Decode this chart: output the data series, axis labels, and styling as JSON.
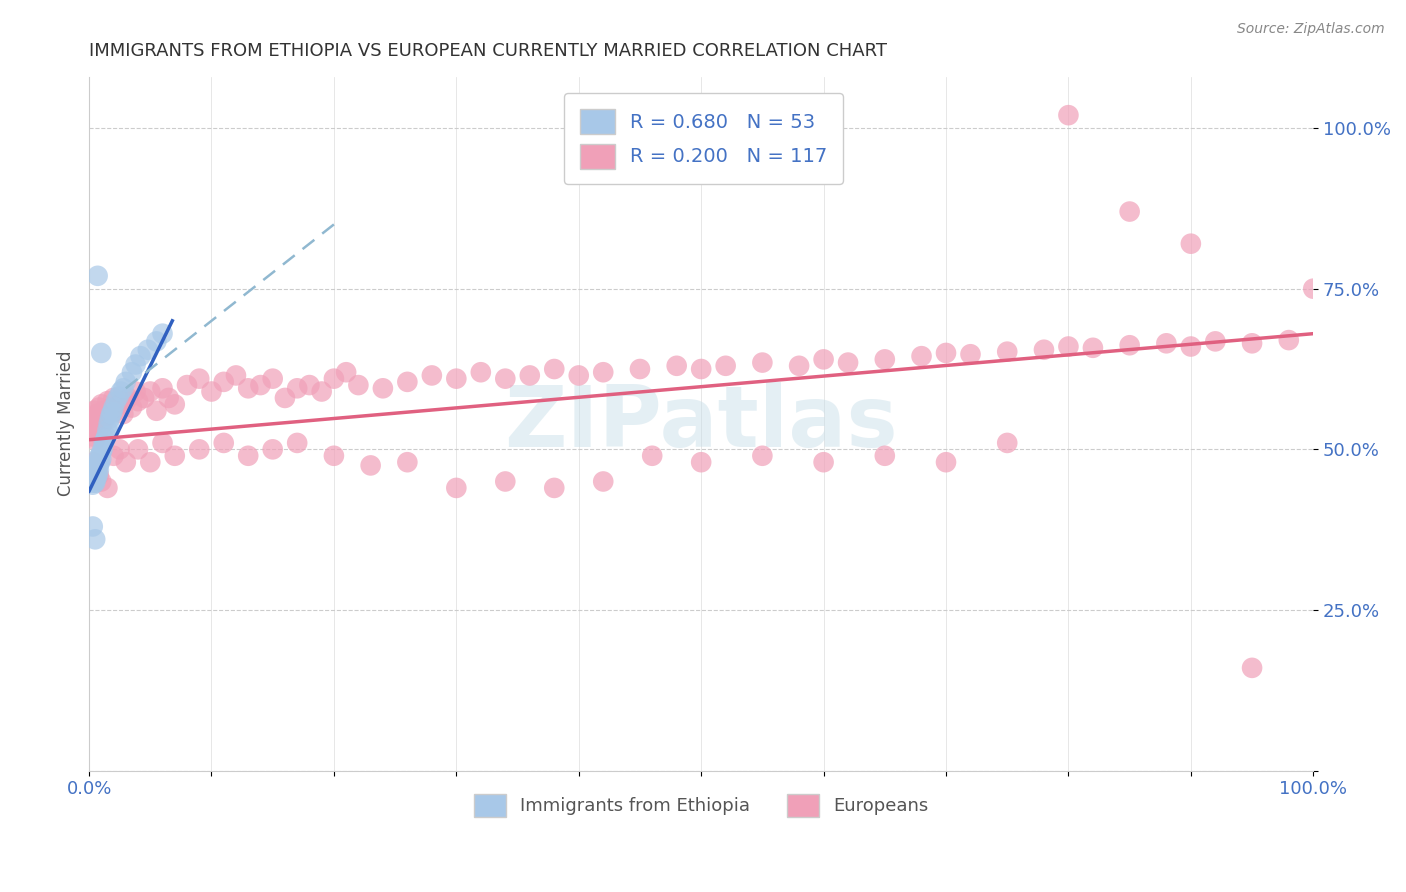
{
  "title": "IMMIGRANTS FROM ETHIOPIA VS EUROPEAN CURRENTLY MARRIED CORRELATION CHART",
  "source": "Source: ZipAtlas.com",
  "ylabel": "Currently Married",
  "legend_r1": "R = 0.680",
  "legend_n1": "N = 53",
  "legend_r2": "R = 0.200",
  "legend_n2": "N = 117",
  "legend_label1": "Immigrants from Ethiopia",
  "legend_label2": "Europeans",
  "watermark": "ZIPatlas",
  "blue_color": "#a8c8e8",
  "pink_color": "#f0a0b8",
  "blue_line_color": "#3060c0",
  "pink_line_color": "#e06080",
  "dashed_line_color": "#90b8d0",
  "axis_label_color": "#4472c4",
  "legend_r_color": "#4472c4",
  "blue_scatter_x": [
    0.001,
    0.002,
    0.002,
    0.003,
    0.003,
    0.003,
    0.004,
    0.004,
    0.004,
    0.004,
    0.005,
    0.005,
    0.005,
    0.005,
    0.005,
    0.006,
    0.006,
    0.006,
    0.007,
    0.007,
    0.007,
    0.008,
    0.008,
    0.008,
    0.009,
    0.009,
    0.01,
    0.01,
    0.011,
    0.012,
    0.013,
    0.014,
    0.015,
    0.016,
    0.017,
    0.018,
    0.019,
    0.02,
    0.022,
    0.024,
    0.026,
    0.028,
    0.03,
    0.035,
    0.038,
    0.042,
    0.048,
    0.055,
    0.06,
    0.005,
    0.003,
    0.007,
    0.01
  ],
  "blue_scatter_y": [
    0.455,
    0.46,
    0.45,
    0.465,
    0.455,
    0.445,
    0.46,
    0.452,
    0.448,
    0.458,
    0.47,
    0.462,
    0.455,
    0.472,
    0.448,
    0.475,
    0.465,
    0.455,
    0.48,
    0.47,
    0.46,
    0.488,
    0.478,
    0.468,
    0.49,
    0.48,
    0.495,
    0.485,
    0.5,
    0.51,
    0.515,
    0.52,
    0.53,
    0.54,
    0.548,
    0.555,
    0.558,
    0.565,
    0.575,
    0.582,
    0.59,
    0.595,
    0.605,
    0.62,
    0.632,
    0.645,
    0.655,
    0.668,
    0.68,
    0.36,
    0.38,
    0.77,
    0.65
  ],
  "pink_scatter_x": [
    0.001,
    0.002,
    0.003,
    0.003,
    0.004,
    0.004,
    0.005,
    0.005,
    0.006,
    0.007,
    0.008,
    0.009,
    0.01,
    0.011,
    0.012,
    0.013,
    0.015,
    0.016,
    0.018,
    0.02,
    0.022,
    0.025,
    0.028,
    0.03,
    0.032,
    0.035,
    0.038,
    0.04,
    0.045,
    0.05,
    0.055,
    0.06,
    0.065,
    0.07,
    0.08,
    0.09,
    0.1,
    0.11,
    0.12,
    0.13,
    0.14,
    0.15,
    0.16,
    0.17,
    0.18,
    0.19,
    0.2,
    0.21,
    0.22,
    0.24,
    0.26,
    0.28,
    0.3,
    0.32,
    0.34,
    0.36,
    0.38,
    0.4,
    0.42,
    0.45,
    0.48,
    0.5,
    0.52,
    0.55,
    0.58,
    0.6,
    0.62,
    0.65,
    0.68,
    0.7,
    0.72,
    0.75,
    0.78,
    0.8,
    0.82,
    0.85,
    0.88,
    0.9,
    0.92,
    0.95,
    0.98,
    1.0,
    0.004,
    0.006,
    0.008,
    0.01,
    0.015,
    0.02,
    0.025,
    0.03,
    0.04,
    0.05,
    0.06,
    0.07,
    0.09,
    0.11,
    0.13,
    0.15,
    0.17,
    0.2,
    0.23,
    0.26,
    0.3,
    0.34,
    0.38,
    0.42,
    0.46,
    0.5,
    0.55,
    0.6,
    0.65,
    0.7,
    0.75,
    0.8,
    0.85,
    0.9,
    0.95
  ],
  "pink_scatter_y": [
    0.54,
    0.53,
    0.55,
    0.52,
    0.56,
    0.535,
    0.545,
    0.515,
    0.555,
    0.525,
    0.565,
    0.535,
    0.57,
    0.54,
    0.56,
    0.55,
    0.575,
    0.555,
    0.565,
    0.58,
    0.56,
    0.57,
    0.555,
    0.575,
    0.58,
    0.565,
    0.59,
    0.575,
    0.58,
    0.59,
    0.56,
    0.595,
    0.58,
    0.57,
    0.6,
    0.61,
    0.59,
    0.605,
    0.615,
    0.595,
    0.6,
    0.61,
    0.58,
    0.595,
    0.6,
    0.59,
    0.61,
    0.62,
    0.6,
    0.595,
    0.605,
    0.615,
    0.61,
    0.62,
    0.61,
    0.615,
    0.625,
    0.615,
    0.62,
    0.625,
    0.63,
    0.625,
    0.63,
    0.635,
    0.63,
    0.64,
    0.635,
    0.64,
    0.645,
    0.65,
    0.648,
    0.652,
    0.655,
    0.66,
    0.658,
    0.662,
    0.665,
    0.66,
    0.668,
    0.665,
    0.67,
    0.75,
    0.48,
    0.47,
    0.46,
    0.45,
    0.44,
    0.49,
    0.5,
    0.48,
    0.5,
    0.48,
    0.51,
    0.49,
    0.5,
    0.51,
    0.49,
    0.5,
    0.51,
    0.49,
    0.475,
    0.48,
    0.44,
    0.45,
    0.44,
    0.45,
    0.49,
    0.48,
    0.49,
    0.48,
    0.49,
    0.48,
    0.51,
    1.02,
    0.87,
    0.82,
    0.16
  ],
  "blue_line_x": [
    0.0,
    0.068
  ],
  "blue_line_y": [
    0.435,
    0.7
  ],
  "pink_line_x": [
    0.0,
    1.0
  ],
  "pink_line_y": [
    0.515,
    0.68
  ],
  "dashed_line_x": [
    0.03,
    0.2
  ],
  "dashed_line_y": [
    0.595,
    0.85
  ],
  "xlim": [
    0.0,
    1.0
  ],
  "ylim": [
    0.0,
    1.08
  ],
  "y_tick_positions": [
    0.0,
    0.25,
    0.5,
    0.75,
    1.0
  ],
  "y_tick_labels": [
    "",
    "25.0%",
    "50.0%",
    "75.0%",
    "100.0%"
  ]
}
